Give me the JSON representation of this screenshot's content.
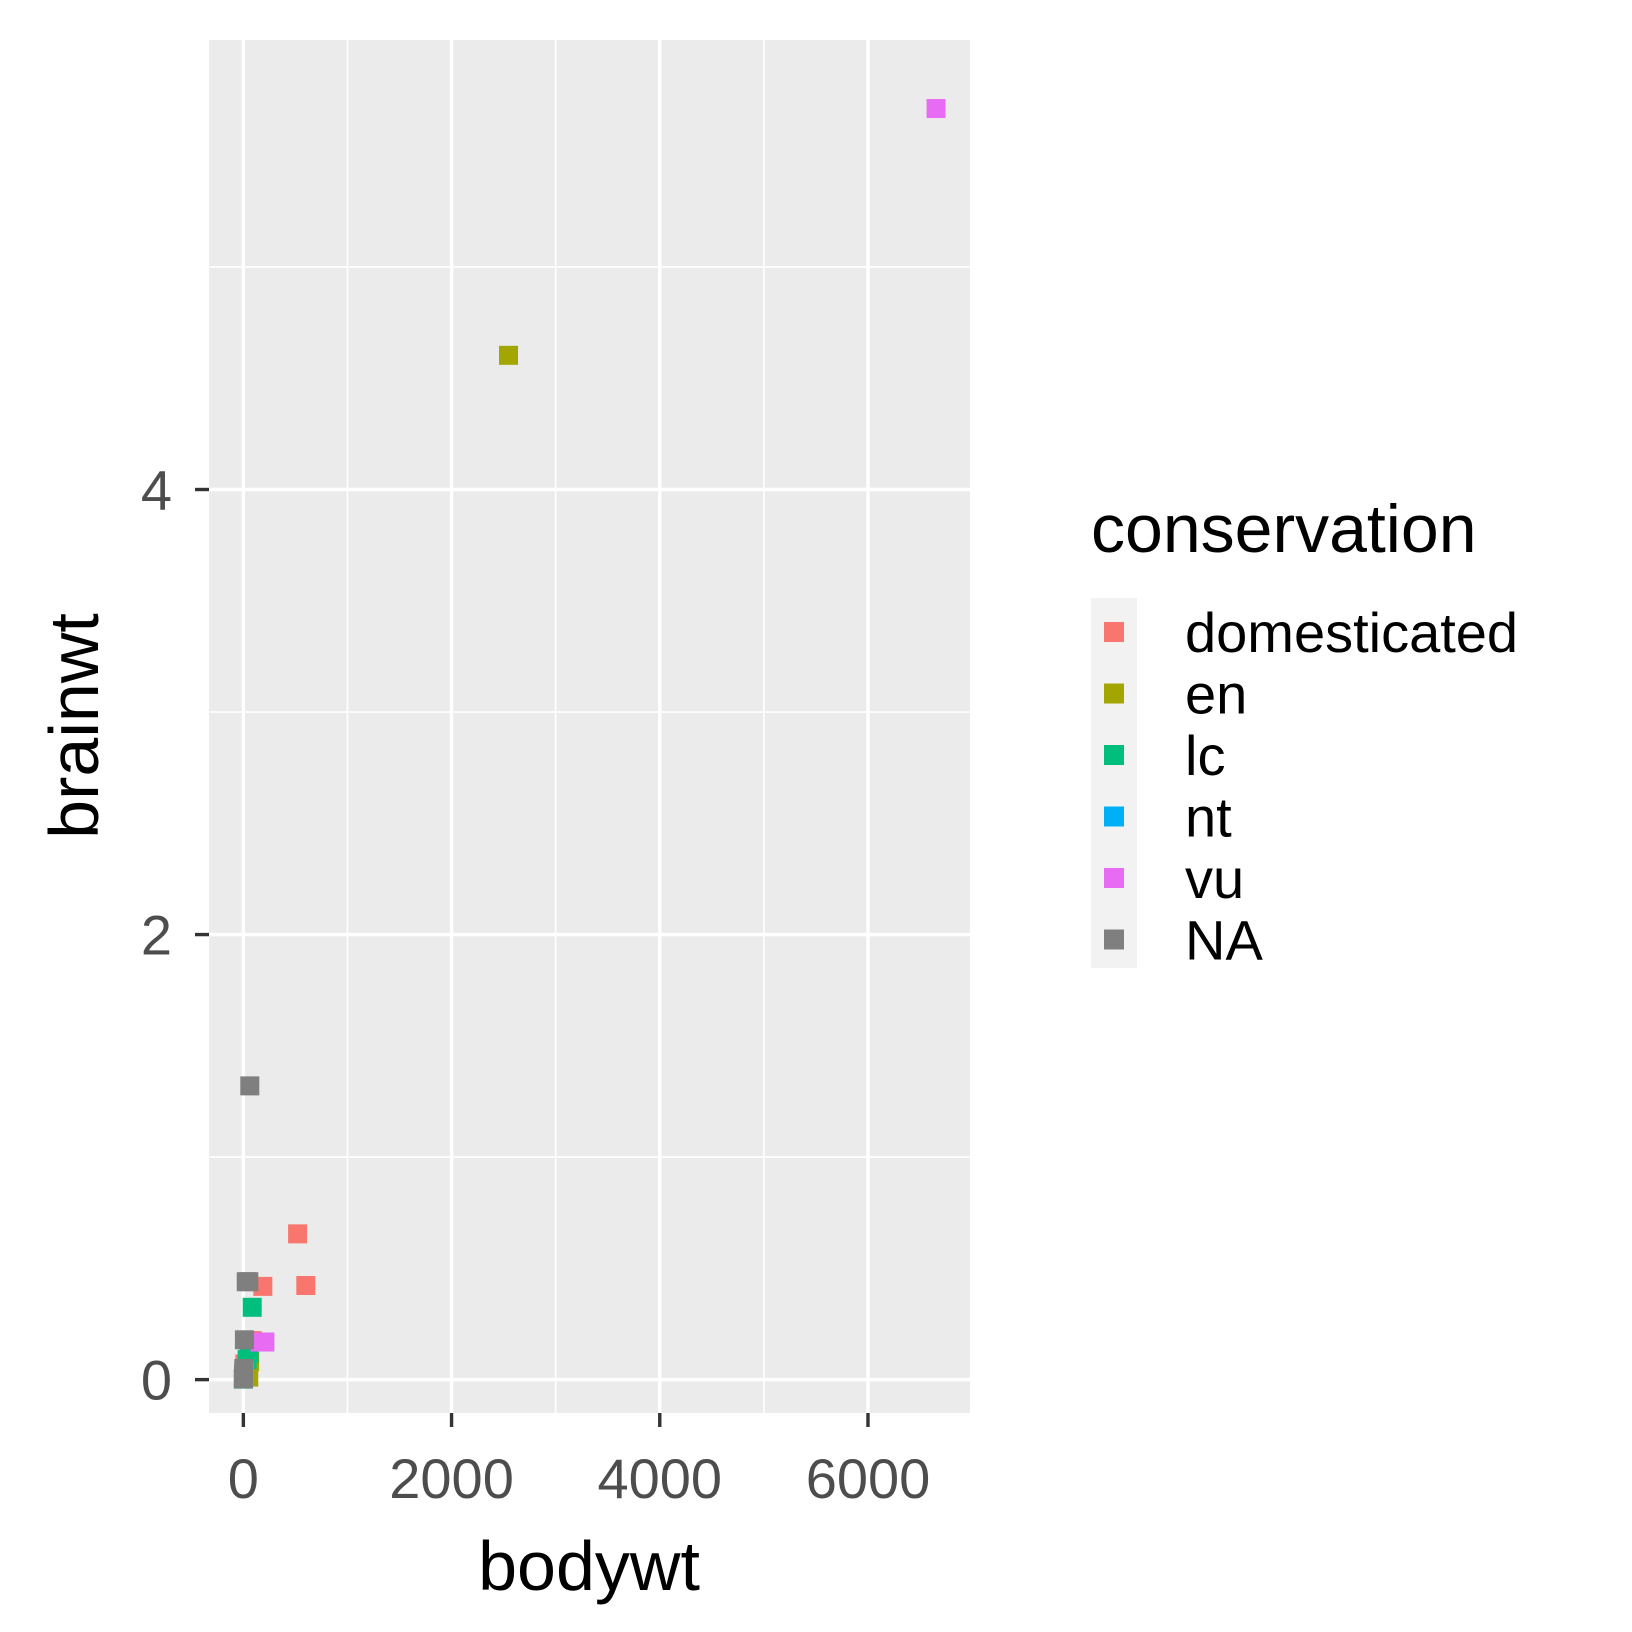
{
  "chart_data": {
    "type": "scatter",
    "xlabel": "bodywt",
    "ylabel": "brainwt",
    "xlim": [
      -330,
      6980
    ],
    "ylim": [
      -0.15,
      6.02
    ],
    "x_ticks": [
      0,
      2000,
      4000,
      6000
    ],
    "x_tick_labels": [
      "0",
      "2000",
      "4000",
      "6000"
    ],
    "y_ticks": [
      0,
      2,
      4
    ],
    "y_tick_labels": [
      "0",
      "2",
      "4"
    ],
    "x_minor": [
      1000,
      3000,
      5000
    ],
    "y_minor": [
      1,
      3,
      5
    ],
    "grid": true,
    "legend": {
      "title": "conservation",
      "position": "right",
      "entries": [
        {
          "name": "domesticated",
          "color": "#F8766D"
        },
        {
          "name": "en",
          "color": "#A3A500"
        },
        {
          "name": "lc",
          "color": "#00BF7D"
        },
        {
          "name": "nt",
          "color": "#00B0F6"
        },
        {
          "name": "vu",
          "color": "#E76BF3"
        },
        {
          "name": "NA",
          "color": "#7F7F7F"
        }
      ]
    },
    "series": [
      {
        "name": "domesticated",
        "color": "#F8766D",
        "points": [
          [
            521,
            0.655
          ],
          [
            600,
            0.423
          ],
          [
            187,
            0.419
          ],
          [
            86,
            0.175
          ],
          [
            55.5,
            0.175
          ],
          [
            35,
            0.056
          ],
          [
            14,
            0.07
          ],
          [
            3.3,
            0.025
          ]
        ]
      },
      {
        "name": "en",
        "color": "#A3A500",
        "points": [
          [
            2547,
            4.603
          ],
          [
            60,
            0.081
          ],
          [
            52,
            0.0115
          ]
        ]
      },
      {
        "name": "lc",
        "color": "#00BF7D",
        "points": [
          [
            85,
            0.325
          ],
          [
            55,
            0.12
          ],
          [
            36,
            0.09
          ],
          [
            6,
            0.05
          ],
          [
            1,
            0.006
          ],
          [
            0.5,
            0.002
          ]
        ]
      },
      {
        "name": "nt",
        "color": "#00B0F6",
        "points": [
          [
            1.8,
            0.012
          ],
          [
            0.6,
            0.005
          ]
        ]
      },
      {
        "name": "vu",
        "color": "#E76BF3",
        "points": [
          [
            6654,
            5.712
          ],
          [
            207,
            0.169
          ],
          [
            160,
            0.169
          ],
          [
            10,
            0.04
          ]
        ]
      },
      {
        "name": "NA",
        "color": "#7F7F7F",
        "points": [
          [
            62,
            1.32
          ],
          [
            52.2,
            0.44
          ],
          [
            27.7,
            0.44
          ],
          [
            10,
            0.179
          ],
          [
            4.2,
            0.05
          ],
          [
            2,
            0.03
          ],
          [
            1,
            0.01
          ],
          [
            0.3,
            0.003
          ]
        ]
      }
    ]
  }
}
